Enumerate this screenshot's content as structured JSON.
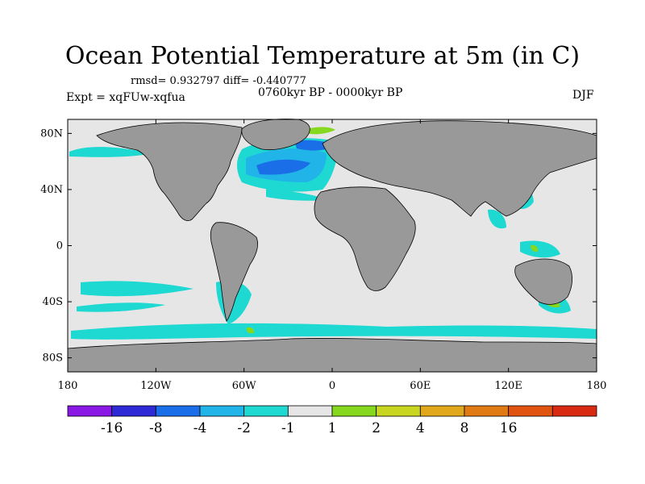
{
  "title": "Ocean Potential Temperature at 5m (in C)",
  "stats": "rmsd= 0.932797 diff= -0.440777",
  "period": "0760kyr BP - 0000kyr BP",
  "experiment": "Expt = xqFUw-xqfua",
  "season": "DJF",
  "map": {
    "lat_ticks": [
      {
        "lat": 80,
        "label": "80N"
      },
      {
        "lat": 40,
        "label": "40N"
      },
      {
        "lat": 0,
        "label": "0"
      },
      {
        "lat": -40,
        "label": "40S"
      },
      {
        "lat": -80,
        "label": "80S"
      }
    ],
    "lon_ticks": [
      {
        "lon": -180,
        "label": "180"
      },
      {
        "lon": -120,
        "label": "120W"
      },
      {
        "lon": -60,
        "label": "60W"
      },
      {
        "lon": 0,
        "label": "0"
      },
      {
        "lon": 60,
        "label": "60E"
      },
      {
        "lon": 120,
        "label": "120E"
      },
      {
        "lon": 180,
        "label": "180"
      }
    ],
    "colors": {
      "ocean": "#e6e6e6",
      "land": "#999999",
      "coast": "#000000"
    }
  },
  "colorbar": {
    "colors": [
      "#8a19e6",
      "#2e2ad6",
      "#1a6ee8",
      "#21b4e8",
      "#1ed8d2",
      "#e6e6e6",
      "#86d81f",
      "#c8d61f",
      "#e0a81a",
      "#e07a12",
      "#e05410",
      "#d82a10"
    ],
    "labels": [
      "-16",
      "-8",
      "-4",
      "-2",
      "-1",
      "1",
      "2",
      "4",
      "8",
      "16"
    ]
  }
}
